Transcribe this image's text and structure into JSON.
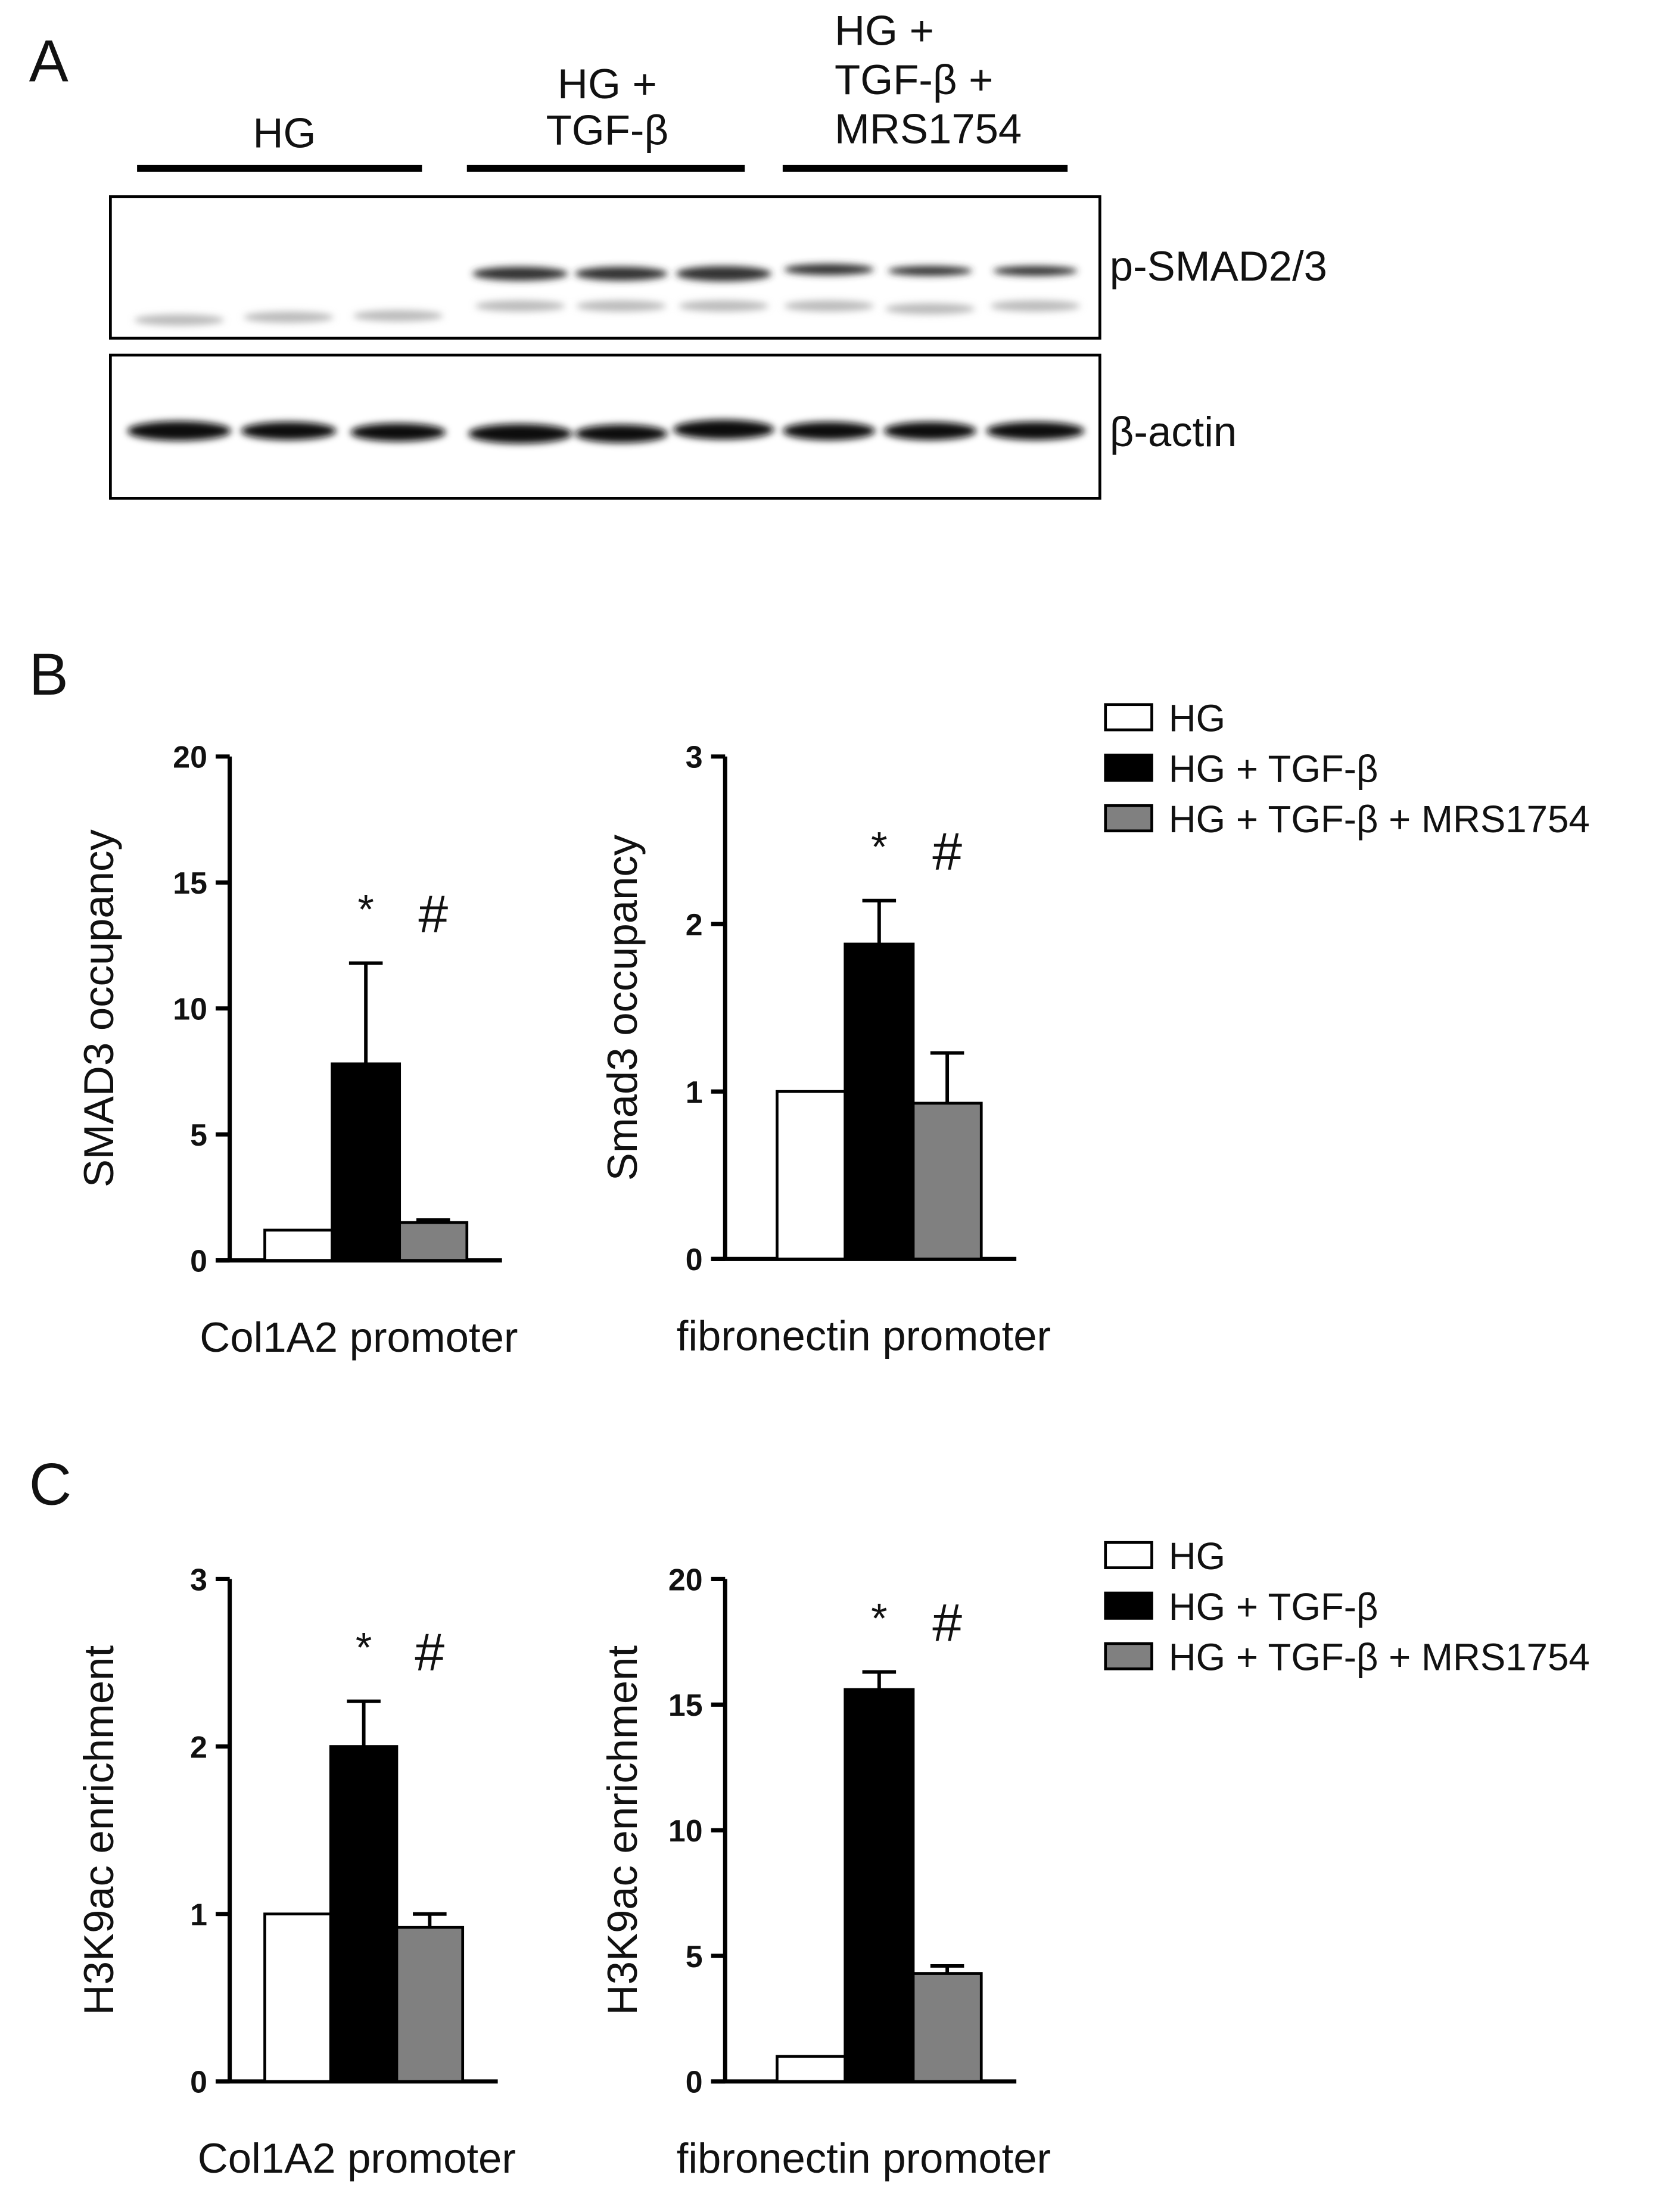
{
  "panels": [
    "A",
    "B",
    "C"
  ],
  "blot": {
    "groups": [
      [
        "HG"
      ],
      [
        "HG +",
        "TGF-β"
      ],
      [
        "HG +",
        "TGF-β +",
        "MRS1754"
      ]
    ],
    "bands": [
      "p-SMAD2/3",
      "β-actin"
    ]
  },
  "chart_data": [
    {
      "type": "bar",
      "ylabel": "SMAD3 occupancy",
      "xlabel": "Col1A2 promoter",
      "categories": [
        "HG",
        "HG + TGF-β",
        "HG + TGF-β + MRS1754"
      ],
      "colors": [
        "#ffffff",
        "#000000",
        "#808080"
      ],
      "values": [
        1.2,
        7.8,
        1.5
      ],
      "errors": [
        0,
        4.0,
        0.1
      ],
      "annotations": [
        "*",
        "#"
      ],
      "ylim": [
        0,
        20
      ],
      "yticks": [
        0,
        5,
        10,
        15,
        20
      ],
      "legend": "right"
    },
    {
      "type": "bar",
      "ylabel": "Smad3 occupancy",
      "xlabel": "fibronectin promoter",
      "categories": [
        "HG",
        "HG + TGF-β",
        "HG + TGF-β + MRS1754"
      ],
      "colors": [
        "#ffffff",
        "#000000",
        "#808080"
      ],
      "values": [
        1.0,
        1.88,
        0.93
      ],
      "errors": [
        0,
        0.26,
        0.3
      ],
      "annotations": [
        "*",
        "#"
      ],
      "ylim": [
        0,
        3
      ],
      "yticks": [
        0,
        1,
        2,
        3
      ]
    },
    {
      "type": "bar",
      "ylabel": "H3K9ac enrichment",
      "xlabel": "Col1A2 promoter",
      "categories": [
        "HG",
        "HG + TGF-β",
        "HG + TGF-β + MRS1754"
      ],
      "colors": [
        "#ffffff",
        "#000000",
        "#808080"
      ],
      "values": [
        1.0,
        2.0,
        0.92
      ],
      "errors": [
        0,
        0.27,
        0.08
      ],
      "annotations": [
        "*",
        "#"
      ],
      "ylim": [
        0,
        3
      ],
      "yticks": [
        0,
        1,
        2,
        3
      ],
      "legend": "right"
    },
    {
      "type": "bar",
      "ylabel": "H3K9ac enrichment",
      "xlabel": "fibronectin promoter",
      "categories": [
        "HG",
        "HG + TGF-β",
        "HG + TGF-β + MRS1754"
      ],
      "colors": [
        "#ffffff",
        "#000000",
        "#808080"
      ],
      "values": [
        1.0,
        15.6,
        4.3
      ],
      "errors": [
        0,
        0.7,
        0.3
      ],
      "annotations": [
        "*",
        "#"
      ],
      "ylim": [
        0,
        20
      ],
      "yticks": [
        0,
        5,
        10,
        15,
        20
      ]
    }
  ]
}
